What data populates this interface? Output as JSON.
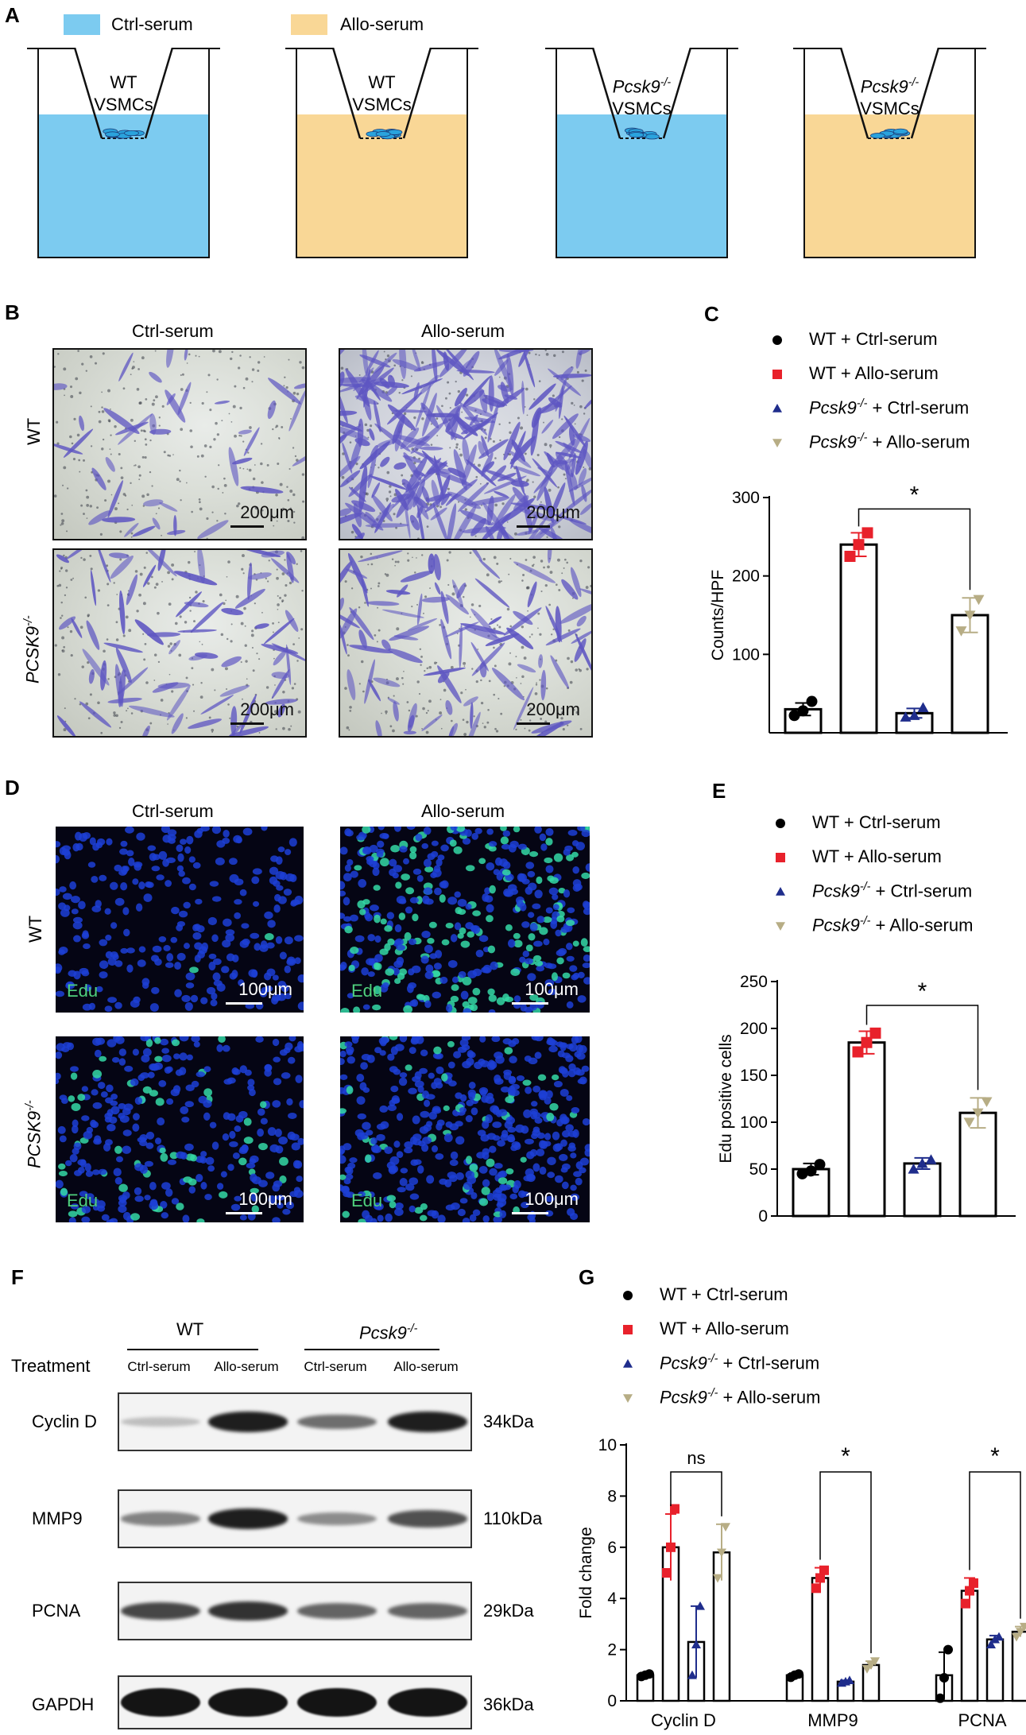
{
  "panels": {
    "A": "A",
    "B": "B",
    "C": "C",
    "D": "D",
    "E": "E",
    "F": "F",
    "G": "G"
  },
  "colors": {
    "ctrl": "#7ccbf0",
    "allo": "#f9d796",
    "wt": "#000000",
    "wt_allo": "#e8212b",
    "pcsk_ctrl": "#1f2d8c",
    "pcsk_allo": "#b7ad85"
  },
  "schematic": {
    "legend": [
      "Ctrl-serum",
      "Allo-serum"
    ],
    "wells": [
      {
        "line1": "WT",
        "line2": "VSMCs",
        "italic": false,
        "sup": ""
      },
      {
        "line1": "WT",
        "line2": "VSMCs",
        "italic": false,
        "sup": ""
      },
      {
        "line1": "Pcsk9",
        "line2": "VSMCs",
        "italic": true,
        "sup": "-/-"
      },
      {
        "line1": "Pcsk9",
        "line2": "VSMCs",
        "italic": true,
        "sup": "-/-"
      }
    ]
  },
  "images": {
    "col_headers": [
      "Ctrl-serum",
      "Allo-serum"
    ],
    "row_wt": "WT",
    "row_pcsk_B": "PCSK9",
    "row_pcsk_D": "PCSK9",
    "sup": "-/-",
    "scale_B": "200μm",
    "scale_D": "100μm",
    "edu": "Edu"
  },
  "legend_entries": [
    {
      "pre": "WT",
      "sup": "",
      "post": " + Ctrl-serum",
      "italic": false
    },
    {
      "pre": "WT",
      "sup": "",
      "post": " + Allo-serum",
      "italic": false
    },
    {
      "pre": "Pcsk9",
      "sup": "-/-",
      "post": " + Ctrl-serum",
      "italic": true
    },
    {
      "pre": "Pcsk9",
      "sup": "-/-",
      "post": " + Allo-serum",
      "italic": true
    }
  ],
  "western": {
    "group_wt": "WT",
    "group_pcsk": "Pcsk9",
    "sup": "-/-",
    "treatment": "Treatment",
    "lanes": [
      "Ctrl-serum",
      "Allo-serum",
      "Ctrl-serum",
      "Allo-serum"
    ],
    "proteins": [
      {
        "name": "Cyclin D",
        "kda": "34kDa",
        "intensity": [
          0.15,
          0.95,
          0.55,
          0.95
        ]
      },
      {
        "name": "MMP9",
        "kda": "110kDa",
        "intensity": [
          0.45,
          0.95,
          0.4,
          0.7
        ]
      },
      {
        "name": "PCNA",
        "kda": "29kDa",
        "intensity": [
          0.75,
          0.85,
          0.6,
          0.6
        ]
      },
      {
        "name": "GAPDH",
        "kda": "36kDa",
        "intensity": [
          1,
          1,
          1,
          1
        ]
      }
    ]
  },
  "chart_data": [
    {
      "id": "C",
      "type": "bar",
      "ylabel": "Counts/HPF",
      "ylim": [
        0,
        300
      ],
      "yticks": [
        100,
        200,
        300
      ],
      "categories": [
        "WT + Ctrl-serum",
        "WT + Allo-serum",
        "Pcsk9-/- + Ctrl-serum",
        "Pcsk9-/- + Allo-serum"
      ],
      "values": [
        30,
        240,
        25,
        150
      ],
      "errors": [
        8,
        15,
        6,
        22
      ],
      "points": [
        [
          22,
          28,
          40
        ],
        [
          225,
          240,
          255
        ],
        [
          20,
          22,
          32
        ],
        [
          130,
          150,
          170
        ]
      ],
      "annotations": [
        {
          "from": 1,
          "to": 3,
          "text": "*"
        }
      ]
    },
    {
      "id": "E",
      "type": "bar",
      "ylabel": "Edu positive cells",
      "ylim": [
        0,
        250
      ],
      "yticks": [
        0,
        50,
        100,
        150,
        200,
        250
      ],
      "categories": [
        "WT + Ctrl-serum",
        "WT + Allo-serum",
        "Pcsk9-/- + Ctrl-serum",
        "Pcsk9-/- + Allo-serum"
      ],
      "values": [
        50,
        185,
        56,
        110
      ],
      "errors": [
        6,
        12,
        6,
        16
      ],
      "points": [
        [
          45,
          48,
          55
        ],
        [
          175,
          185,
          195
        ],
        [
          50,
          56,
          60
        ],
        [
          100,
          110,
          122
        ]
      ],
      "annotations": [
        {
          "from": 1,
          "to": 3,
          "text": "*"
        }
      ]
    },
    {
      "id": "G",
      "type": "bar",
      "ylabel": "Fold change",
      "ylim": [
        0,
        10
      ],
      "yticks": [
        0,
        2,
        4,
        6,
        8,
        10
      ],
      "categories": [
        "Cyclin D",
        "MMP9",
        "PCNA"
      ],
      "series": [
        {
          "name": "WT + Ctrl-serum",
          "values": [
            1.0,
            1.0,
            1.0
          ],
          "errors": [
            0.05,
            0.08,
            0.9
          ],
          "points": [
            [
              0.95,
              1.0,
              1.05
            ],
            [
              0.92,
              1.0,
              1.05
            ],
            [
              0.1,
              0.9,
              2.0
            ]
          ]
        },
        {
          "name": "WT + Allo-serum",
          "values": [
            6.0,
            4.8,
            4.3
          ],
          "errors": [
            1.3,
            0.4,
            0.5
          ],
          "points": [
            [
              5.0,
              6.0,
              7.5
            ],
            [
              4.4,
              4.8,
              5.1
            ],
            [
              3.8,
              4.3,
              4.6
            ]
          ]
        },
        {
          "name": "Pcsk9-/- + Ctrl-serum",
          "values": [
            2.3,
            0.75,
            2.4
          ],
          "errors": [
            1.4,
            0.05,
            0.15
          ],
          "points": [
            [
              1.0,
              2.2,
              3.7
            ],
            [
              0.7,
              0.75,
              0.8
            ],
            [
              2.2,
              2.4,
              2.5
            ]
          ]
        },
        {
          "name": "Pcsk9-/- + Allo-serum",
          "values": [
            5.8,
            1.4,
            2.7
          ],
          "errors": [
            1.1,
            0.15,
            0.2
          ],
          "points": [
            [
              4.8,
              5.8,
              6.8
            ],
            [
              1.25,
              1.4,
              1.55
            ],
            [
              2.5,
              2.7,
              2.9
            ]
          ]
        }
      ],
      "annotations": [
        {
          "group": 0,
          "text": "ns"
        },
        {
          "group": 1,
          "text": "*"
        },
        {
          "group": 2,
          "text": "*"
        }
      ]
    }
  ]
}
